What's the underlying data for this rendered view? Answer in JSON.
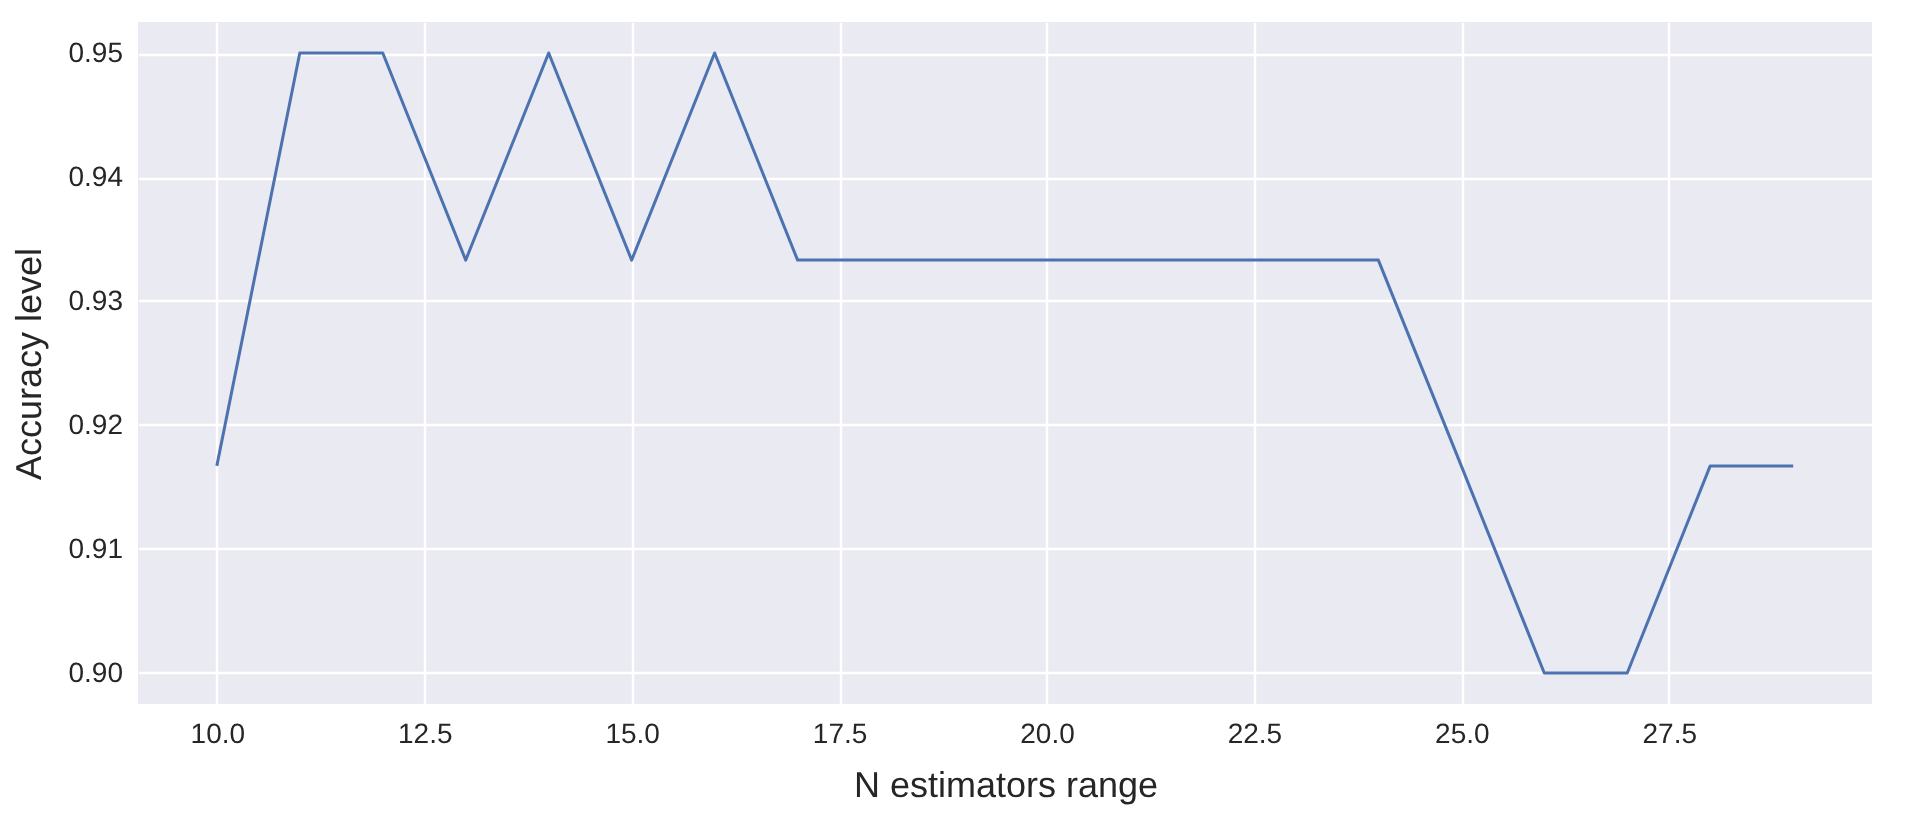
{
  "chart_data": {
    "type": "line",
    "xlabel": "N estimators range",
    "ylabel": "Accuracy level",
    "x": [
      10,
      11,
      12,
      13,
      14,
      15,
      16,
      17,
      18,
      19,
      20,
      21,
      22,
      23,
      24,
      25,
      26,
      27,
      28,
      29
    ],
    "series": [
      {
        "color": "#4c72b0",
        "values": [
          0.9167,
          0.95,
          0.95,
          0.9333,
          0.95,
          0.9333,
          0.95,
          0.9333,
          0.9333,
          0.9333,
          0.9333,
          0.9333,
          0.9333,
          0.9333,
          0.9333,
          0.9167,
          0.9,
          0.9,
          0.9167,
          0.9167
        ]
      }
    ],
    "xlim": [
      9.05,
      29.95
    ],
    "ylim": [
      0.8975,
      0.9525
    ],
    "xticks": [
      {
        "value": 10,
        "label": "10.0"
      },
      {
        "value": 12.5,
        "label": "12.5"
      },
      {
        "value": 15,
        "label": "15.0"
      },
      {
        "value": 17.5,
        "label": "17.5"
      },
      {
        "value": 20,
        "label": "20.0"
      },
      {
        "value": 22.5,
        "label": "22.5"
      },
      {
        "value": 25,
        "label": "25.0"
      },
      {
        "value": 27.5,
        "label": "27.5"
      }
    ],
    "yticks": [
      {
        "value": 0.9,
        "label": "0.90"
      },
      {
        "value": 0.91,
        "label": "0.91"
      },
      {
        "value": 0.92,
        "label": "0.92"
      },
      {
        "value": 0.93,
        "label": "0.93"
      },
      {
        "value": 0.94,
        "label": "0.94"
      },
      {
        "value": 0.95,
        "label": "0.95"
      }
    ],
    "grid": true,
    "legend": false,
    "marker": "none",
    "line_style": "solid"
  }
}
